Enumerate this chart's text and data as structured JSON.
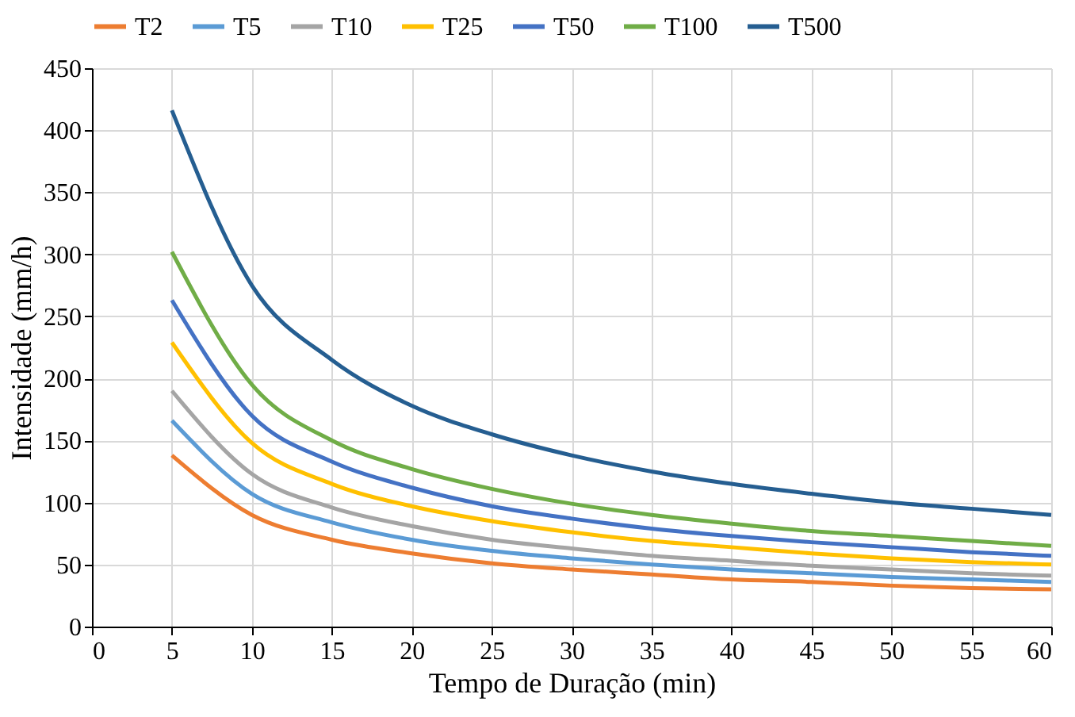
{
  "chart_data": {
    "type": "line",
    "xlabel": "Tempo de Duração  (min)",
    "ylabel": "Intensidade (mm/h)",
    "x": [
      5,
      10,
      15,
      20,
      25,
      30,
      35,
      40,
      45,
      50,
      55,
      60
    ],
    "series": [
      {
        "name": "T2",
        "color": "#ed7d31",
        "values": [
          138,
          90,
          70,
          59,
          51,
          46,
          42,
          38,
          36,
          33,
          31,
          30
        ]
      },
      {
        "name": "T5",
        "color": "#5b9bd5",
        "values": [
          166,
          107,
          84,
          70,
          61,
          55,
          50,
          46,
          43,
          40,
          38,
          36
        ]
      },
      {
        "name": "T10",
        "color": "#a5a5a5",
        "values": [
          190,
          123,
          96,
          81,
          70,
          63,
          57,
          53,
          49,
          46,
          43,
          41
        ]
      },
      {
        "name": "T25",
        "color": "#ffc000",
        "values": [
          229,
          148,
          115,
          97,
          85,
          76,
          69,
          64,
          59,
          55,
          52,
          50
        ]
      },
      {
        "name": "T50",
        "color": "#4472c4",
        "values": [
          263,
          170,
          133,
          112,
          97,
          87,
          79,
          73,
          68,
          64,
          60,
          57
        ]
      },
      {
        "name": "T100",
        "color": "#70ad47",
        "values": [
          302,
          195,
          150,
          127,
          111,
          99,
          90,
          83,
          77,
          73,
          69,
          65
        ]
      },
      {
        "name": "T500",
        "color": "#255e91",
        "values": [
          416,
          275,
          215,
          178,
          155,
          138,
          125,
          115,
          107,
          100,
          95,
          90
        ]
      }
    ],
    "xlim": [
      0,
      60
    ],
    "xticks": [
      0,
      5,
      10,
      15,
      20,
      25,
      30,
      35,
      40,
      45,
      50,
      55,
      60
    ],
    "ylim": [
      0,
      450
    ],
    "yticks": [
      0,
      50,
      100,
      150,
      200,
      250,
      300,
      350,
      400,
      450
    ],
    "grid": true,
    "legend": "top",
    "marker": "none",
    "line_style": "solid"
  }
}
